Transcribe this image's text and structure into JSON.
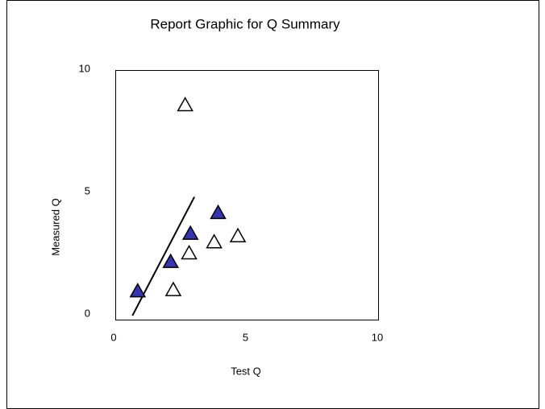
{
  "chart_data": {
    "type": "scatter",
    "title": "Report Graphic for Q Summary",
    "x_label": "Test Q",
    "y_label": "Measured Q",
    "series": [
      {
        "color": "#3535b0",
        "marker": "triangle",
        "x": [
          0.85,
          2.1,
          2.85,
          3.9
        ],
        "values": [
          1.0,
          2.2,
          3.35,
          4.2
        ]
      },
      {
        "color": "#ffffff",
        "marker": "triangle",
        "x": [
          2.65,
          2.2,
          2.8,
          3.75,
          4.65
        ],
        "values": [
          8.6,
          1.05,
          2.55,
          3.0,
          3.25
        ]
      }
    ],
    "fit_line": {
      "x": [
        0.65,
        3.0
      ],
      "values": [
        0,
        4.85
      ]
    },
    "xlim": [
      0,
      10
    ],
    "xticks": [
      0,
      5,
      10
    ],
    "ylim": [
      0,
      10
    ],
    "yticks": [
      0,
      5,
      10
    ],
    "grid": false
  }
}
